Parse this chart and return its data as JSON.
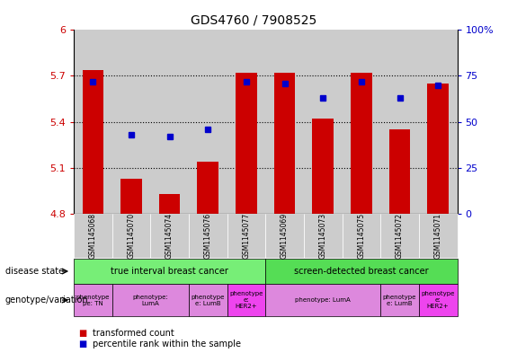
{
  "title": "GDS4760 / 7908525",
  "samples": [
    "GSM1145068",
    "GSM1145070",
    "GSM1145074",
    "GSM1145076",
    "GSM1145077",
    "GSM1145069",
    "GSM1145073",
    "GSM1145075",
    "GSM1145072",
    "GSM1145071"
  ],
  "transformed_count": [
    5.74,
    5.03,
    4.93,
    5.14,
    5.72,
    5.72,
    5.42,
    5.72,
    5.35,
    5.65
  ],
  "percentile_rank": [
    72,
    43,
    42,
    46,
    72,
    71,
    63,
    72,
    63,
    70
  ],
  "ylim_left": [
    4.8,
    6.0
  ],
  "ylim_right": [
    0,
    100
  ],
  "yticks_left": [
    4.8,
    5.1,
    5.4,
    5.7,
    6.0
  ],
  "yticks_right": [
    0,
    25,
    50,
    75,
    100
  ],
  "ytick_labels_left": [
    "4.8",
    "5.1",
    "5.4",
    "5.7",
    "6"
  ],
  "ytick_labels_right": [
    "0",
    "25",
    "50",
    "75",
    "100%"
  ],
  "bar_color": "#cc0000",
  "dot_color": "#0000cc",
  "bar_base": 4.8,
  "disease_state_groups": [
    {
      "label": "true interval breast cancer",
      "start": 0,
      "end": 4,
      "color": "#77ee77"
    },
    {
      "label": "screen-detected breast cancer",
      "start": 5,
      "end": 9,
      "color": "#55dd55"
    }
  ],
  "geno_groups": [
    {
      "label": "phenotype\npe: TN",
      "start": 0,
      "end": 0,
      "color": "#dd88dd"
    },
    {
      "label": "phenotype:\nLumA",
      "start": 1,
      "end": 2,
      "color": "#dd88dd"
    },
    {
      "label": "phenotype\ne: LumB",
      "start": 3,
      "end": 3,
      "color": "#dd88dd"
    },
    {
      "label": "phenotype\ne:\nHER2+",
      "start": 4,
      "end": 4,
      "color": "#ee44ee"
    },
    {
      "label": "phenotype: LumA",
      "start": 5,
      "end": 7,
      "color": "#dd88dd"
    },
    {
      "label": "phenotype\ne: LumB",
      "start": 8,
      "end": 8,
      "color": "#dd88dd"
    },
    {
      "label": "phenotype\ne:\nHER2+",
      "start": 9,
      "end": 9,
      "color": "#ee44ee"
    }
  ],
  "grid_color": "#000000",
  "left_label_color": "#cc0000",
  "right_label_color": "#0000cc",
  "bar_width": 0.55,
  "col_bg_color": "#cccccc",
  "side_label_fontsize": 7,
  "legend_red_label": "transformed count",
  "legend_blue_label": "percentile rank within the sample"
}
